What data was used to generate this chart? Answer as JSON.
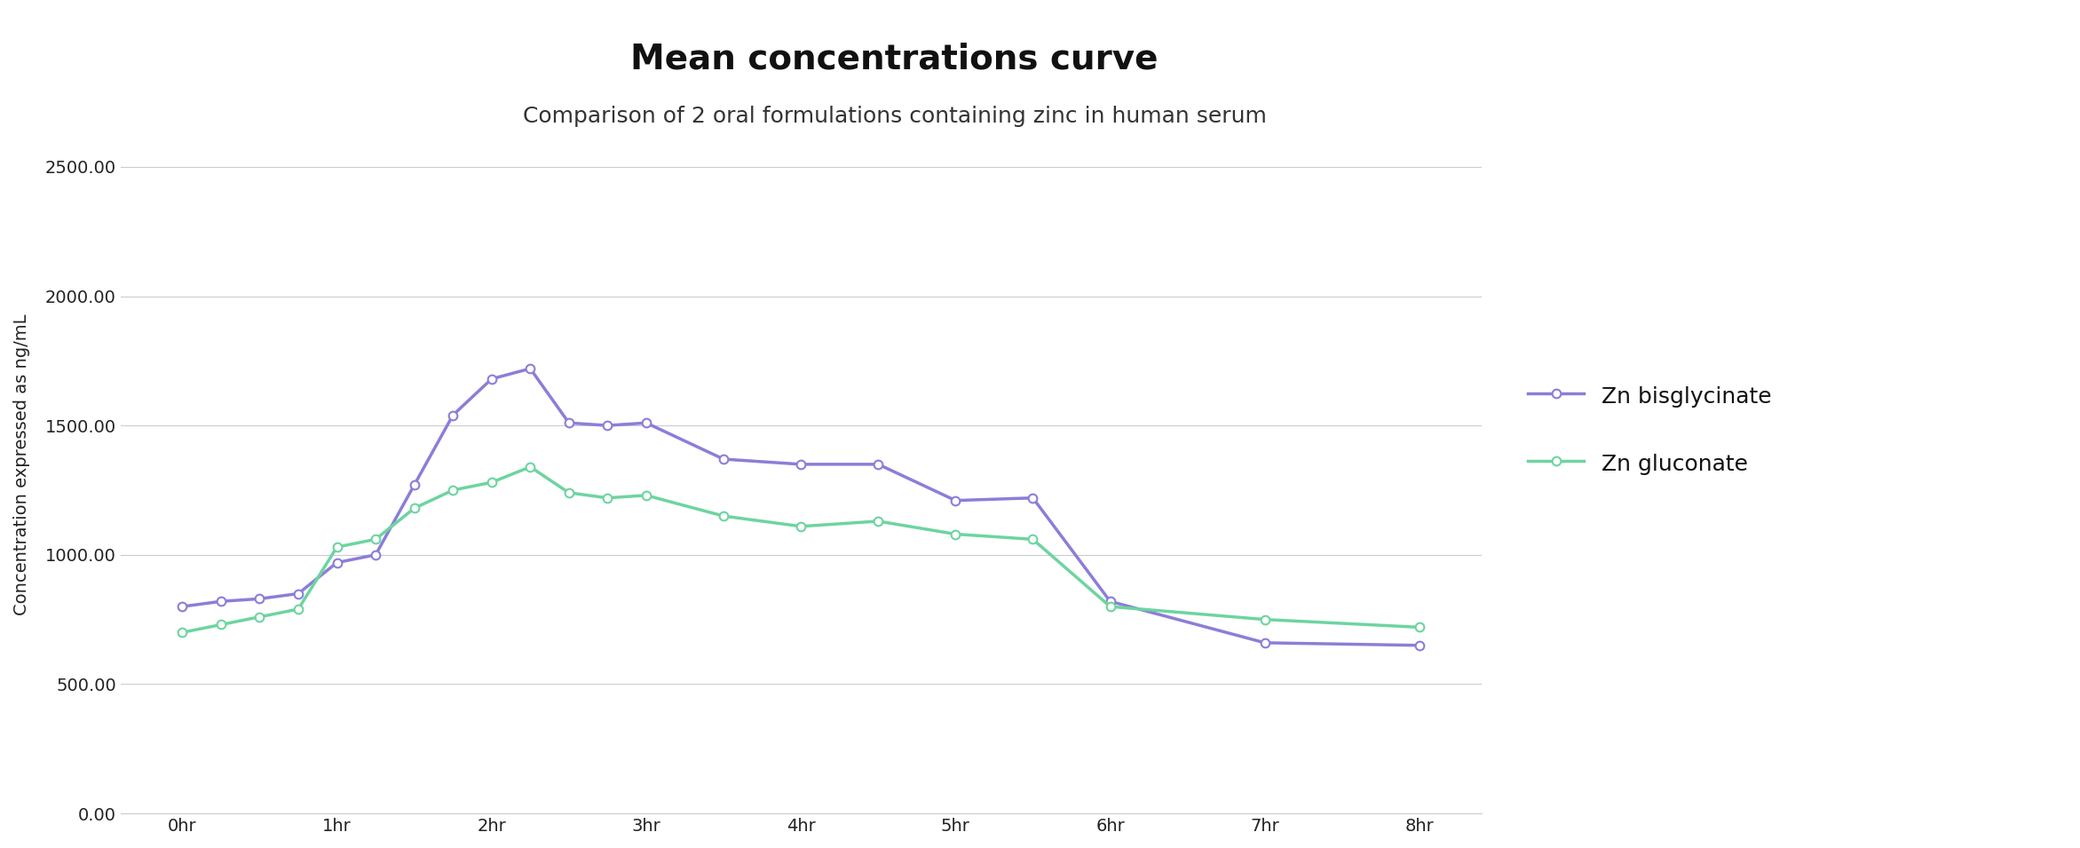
{
  "title": "Mean concentrations curve",
  "subtitle": "Comparison of 2 oral formulations containing zinc in human serum",
  "xlabel": "",
  "ylabel": "Concentration expressed as ng/mL",
  "x_labels": [
    "0hr",
    "1hr",
    "2hr",
    "3hr",
    "4hr",
    "5hr",
    "6hr",
    "7hr",
    "8hr"
  ],
  "x_values": [
    0,
    1,
    2,
    3,
    4,
    5,
    6,
    7,
    8
  ],
  "bisglycinate_x": [
    0,
    0.25,
    0.5,
    0.75,
    1.0,
    1.25,
    1.5,
    1.75,
    2.0,
    2.25,
    2.5,
    2.75,
    3.0,
    3.5,
    4.0,
    4.5,
    5.0,
    5.5,
    6.0,
    7.0,
    8.0
  ],
  "bisglycinate_y": [
    800,
    820,
    830,
    850,
    970,
    1000,
    1270,
    1540,
    1680,
    1720,
    1510,
    1500,
    1510,
    1370,
    1350,
    1350,
    1210,
    1220,
    820,
    660,
    650
  ],
  "gluconate_x": [
    0,
    0.25,
    0.5,
    0.75,
    1.0,
    1.25,
    1.5,
    1.75,
    2.0,
    2.25,
    2.5,
    2.75,
    3.0,
    3.5,
    4.0,
    4.5,
    5.0,
    5.5,
    6.0,
    7.0,
    8.0
  ],
  "gluconate_y": [
    700,
    730,
    760,
    790,
    1030,
    1060,
    1180,
    1250,
    1280,
    1340,
    1240,
    1220,
    1230,
    1150,
    1110,
    1130,
    1080,
    1060,
    800,
    750,
    720
  ],
  "bisglycinate_color": "#8B7ED8",
  "gluconate_color": "#6DD4A0",
  "marker_facecolor": "white",
  "grid_color": "#cccccc",
  "background_color": "#ffffff",
  "ylim": [
    0,
    2700
  ],
  "yticks": [
    0,
    500,
    1000,
    1500,
    2000,
    2500
  ],
  "ytick_labels": [
    "0.00",
    "500.00",
    "1000.00",
    "1500.00",
    "2000.00",
    "2500.00"
  ],
  "title_fontsize": 28,
  "subtitle_fontsize": 18,
  "ylabel_fontsize": 14,
  "tick_fontsize": 14,
  "legend_fontsize": 18,
  "line_width": 2.5,
  "marker_size": 7,
  "legend_label_1": "Zn bisglycinate",
  "legend_label_2": "Zn gluconate"
}
